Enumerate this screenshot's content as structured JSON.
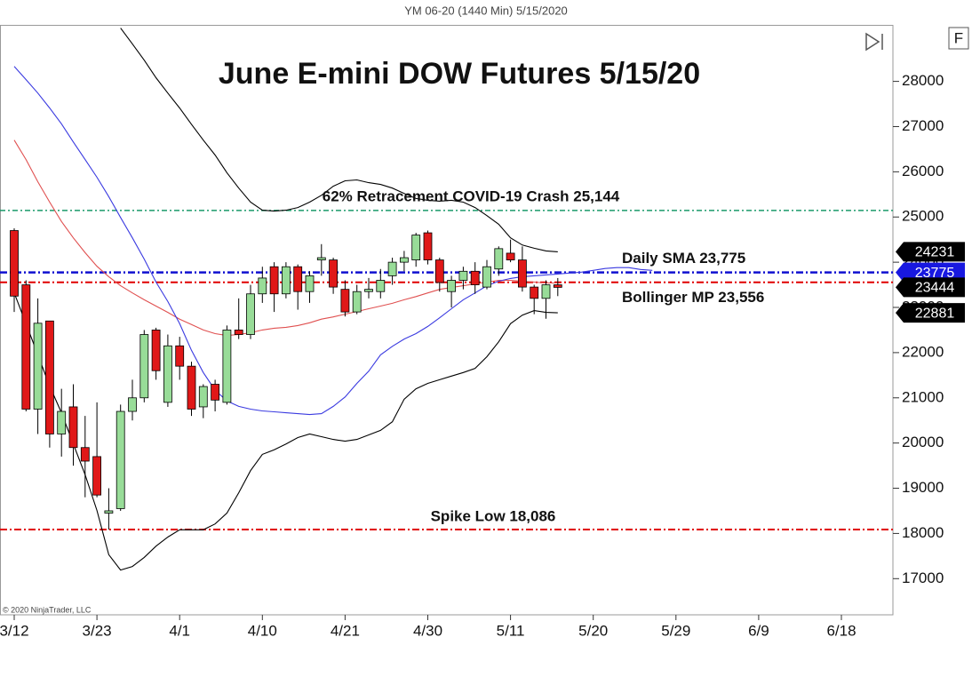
{
  "chart_data": {
    "type": "candlestick",
    "header": "YM 06-20 (1440 Min)  5/15/2020",
    "title": "June E-mini DOW Futures 5/15/20",
    "copyright": "© 2020 NinjaTrader, LLC",
    "button": "F",
    "categories": [
      "3/12",
      null,
      null,
      null,
      null,
      null,
      null,
      "3/23",
      null,
      null,
      null,
      null,
      null,
      null,
      "4/1",
      null,
      null,
      null,
      null,
      null,
      null,
      "4/10",
      null,
      null,
      null,
      null,
      null,
      null,
      "4/21",
      null,
      null,
      null,
      null,
      null,
      null,
      "4/30",
      null,
      null,
      null,
      null,
      null,
      null,
      "5/11",
      null,
      null,
      null,
      null,
      null,
      null,
      "5/20",
      null,
      null,
      null,
      null,
      null,
      null,
      "5/29",
      null,
      null,
      null,
      null,
      null,
      null,
      "6/9",
      null,
      null,
      null,
      null,
      null,
      null,
      "6/18",
      null,
      null,
      null,
      null
    ],
    "candles": {
      "up_color": "#98dc98",
      "down_color": "#e01818",
      "open": [
        24700,
        23500,
        20750,
        22700,
        20200,
        20800,
        19900,
        19700,
        18450,
        18550,
        20700,
        21000,
        22500,
        20900,
        22150,
        21700,
        20800,
        21300,
        20900,
        22500,
        22400,
        23300,
        23900,
        23300,
        23900,
        23350,
        24050,
        24050,
        23400,
        22900,
        23350,
        23350,
        23700,
        24000,
        24050,
        24650,
        24050,
        23350,
        23600,
        23800,
        23450,
        23850,
        24200,
        24050,
        23450,
        23200,
        23500,
        null,
        null,
        null,
        null,
        null,
        null,
        null,
        null,
        null,
        null,
        null,
        null,
        null,
        null,
        null,
        null,
        null,
        null,
        null,
        null,
        null,
        null,
        null,
        null,
        null,
        null,
        null,
        null
      ],
      "high": [
        24750,
        23600,
        23200,
        22700,
        21200,
        21300,
        20600,
        20900,
        19000,
        20850,
        21400,
        22500,
        22550,
        22400,
        22350,
        21800,
        21300,
        21400,
        22600,
        23200,
        23500,
        23900,
        24000,
        24000,
        23950,
        23800,
        24400,
        24100,
        23600,
        23500,
        23650,
        23850,
        24100,
        24250,
        24650,
        24700,
        24100,
        23700,
        23900,
        24000,
        24050,
        24350,
        24500,
        24350,
        23500,
        23600,
        23650,
        null,
        null,
        null,
        null,
        null,
        null,
        null,
        null,
        null,
        null,
        null,
        null,
        null,
        null,
        null,
        null,
        null,
        null,
        null,
        null,
        null,
        null,
        null,
        null,
        null,
        null,
        null,
        null
      ],
      "low": [
        22900,
        20700,
        20200,
        19900,
        19700,
        19500,
        18800,
        18800,
        18086,
        18500,
        20500,
        20900,
        21400,
        20800,
        21400,
        20600,
        20550,
        20700,
        20850,
        22300,
        22300,
        23100,
        22900,
        23200,
        22950,
        23100,
        23700,
        23300,
        22800,
        22850,
        23200,
        23200,
        23500,
        23800,
        23900,
        23950,
        23350,
        23000,
        23400,
        23300,
        23400,
        23700,
        24000,
        23350,
        22850,
        22750,
        23250,
        null,
        null,
        null,
        null,
        null,
        null,
        null,
        null,
        null,
        null,
        null,
        null,
        null,
        null,
        null,
        null,
        null,
        null,
        null,
        null,
        null,
        null,
        null,
        null,
        null,
        null,
        null,
        null
      ],
      "close": [
        23250,
        20750,
        22650,
        20200,
        20700,
        19900,
        19600,
        18850,
        18500,
        20700,
        21000,
        22400,
        21600,
        22150,
        21700,
        20750,
        21250,
        20950,
        22500,
        22400,
        23300,
        23650,
        23300,
        23900,
        23350,
        23700,
        24100,
        23450,
        22900,
        23350,
        23400,
        23600,
        24000,
        24100,
        24600,
        24050,
        23550,
        23600,
        23800,
        23500,
        23900,
        24300,
        24050,
        23450,
        23200,
        23500,
        23444,
        null,
        null,
        null,
        null,
        null,
        null,
        null,
        null,
        null,
        null,
        null,
        null,
        null,
        null,
        null,
        null,
        null,
        null,
        null,
        null,
        null,
        null,
        null,
        null,
        null,
        null,
        null,
        null
      ]
    },
    "series": [
      {
        "color": "#000000",
        "values": [
          null,
          null,
          null,
          null,
          null,
          null,
          null,
          null,
          null,
          29180,
          28830,
          28470,
          28080,
          27740,
          27410,
          27050,
          26700,
          26370,
          25980,
          25640,
          25330,
          25150,
          25130,
          25150,
          25210,
          25330,
          25480,
          25680,
          25800,
          25820,
          25760,
          25720,
          25640,
          25520,
          25410,
          25370,
          25350,
          25370,
          25330,
          25210,
          25030,
          24840,
          24540,
          24380,
          24310,
          24250,
          24230,
          null,
          null,
          null,
          null,
          null,
          null,
          null,
          null,
          null,
          null,
          null,
          null,
          null,
          null,
          null,
          null,
          null,
          null,
          null,
          null,
          null,
          null,
          null,
          null,
          null,
          null,
          null,
          null
        ]
      },
      {
        "color": "#000000",
        "values": [
          23320,
          22640,
          21950,
          21260,
          20670,
          19980,
          19300,
          18510,
          17530,
          17190,
          17270,
          17470,
          17720,
          17920,
          18080,
          18080,
          18080,
          18210,
          18450,
          18900,
          19390,
          19750,
          19850,
          19980,
          20120,
          20200,
          20140,
          20080,
          20040,
          20080,
          20180,
          20280,
          20470,
          20970,
          21200,
          21320,
          21400,
          21480,
          21560,
          21650,
          21910,
          22240,
          22640,
          22830,
          22930,
          22890,
          22881,
          null,
          null,
          null,
          null,
          null,
          null,
          null,
          null,
          null,
          null,
          null,
          null,
          null,
          null,
          null,
          null,
          null,
          null,
          null,
          null,
          null,
          null,
          null,
          null,
          null,
          null,
          null,
          null
        ]
      },
      {
        "color": "#e05050",
        "values": [
          26700,
          26270,
          25780,
          25330,
          24900,
          24540,
          24210,
          23910,
          23680,
          23480,
          23320,
          23170,
          23030,
          22890,
          22740,
          22620,
          22500,
          22420,
          22380,
          22400,
          22440,
          22500,
          22540,
          22560,
          22600,
          22660,
          22740,
          22790,
          22850,
          22910,
          22970,
          23030,
          23090,
          23170,
          23240,
          23320,
          23400,
          23440,
          23480,
          23520,
          23560,
          23600,
          23600,
          23580,
          23560,
          23540,
          23540,
          null,
          null,
          null,
          null,
          null,
          null,
          null,
          null,
          null,
          null,
          null,
          null,
          null,
          null,
          null,
          null,
          null,
          null,
          null,
          null,
          null,
          null,
          null,
          null,
          null,
          null,
          null,
          null
        ]
      },
      {
        "color": "#3a3ae0",
        "values": [
          28330,
          28040,
          27740,
          27410,
          27060,
          26660,
          26270,
          25880,
          25450,
          24990,
          24540,
          24070,
          23560,
          23130,
          22640,
          22050,
          21560,
          21170,
          20930,
          20810,
          20750,
          20710,
          20690,
          20670,
          20650,
          20630,
          20650,
          20810,
          21020,
          21320,
          21590,
          21950,
          22140,
          22300,
          22420,
          22580,
          22770,
          22970,
          23170,
          23320,
          23480,
          23580,
          23640,
          23680,
          23700,
          23720,
          23740,
          23760,
          23780,
          23820,
          23860,
          23880,
          23880,
          23840,
          23820,
          null,
          null,
          null,
          null,
          null,
          null,
          null,
          null,
          null,
          null,
          null,
          null,
          null,
          null,
          null,
          null,
          null,
          null,
          null,
          null
        ]
      }
    ],
    "reference_lines": [
      {
        "value": 25144,
        "label": "62% Retracement COVID-19 Crash 25,144",
        "color": "#1a9a6a"
      },
      {
        "value": 23775,
        "label": "Daily SMA 23,775",
        "color": "#1010d0"
      },
      {
        "value": 23556,
        "label": "Bollinger MP 23,556",
        "color": "#e00000"
      },
      {
        "value": 18086,
        "label": "Spike Low 18,086",
        "color": "#e00000"
      }
    ],
    "price_tags": [
      {
        "value": 23775,
        "color": "#1818e0"
      },
      {
        "value": 24231,
        "color": "#000000"
      },
      {
        "value": 23444,
        "color": "#000000"
      },
      {
        "value": 22881,
        "color": "#000000"
      }
    ],
    "ylim": [
      16200,
      29250
    ],
    "yticks": [
      17000,
      18000,
      19000,
      20000,
      21000,
      22000,
      23000,
      24000,
      25000,
      26000,
      27000,
      28000
    ]
  }
}
